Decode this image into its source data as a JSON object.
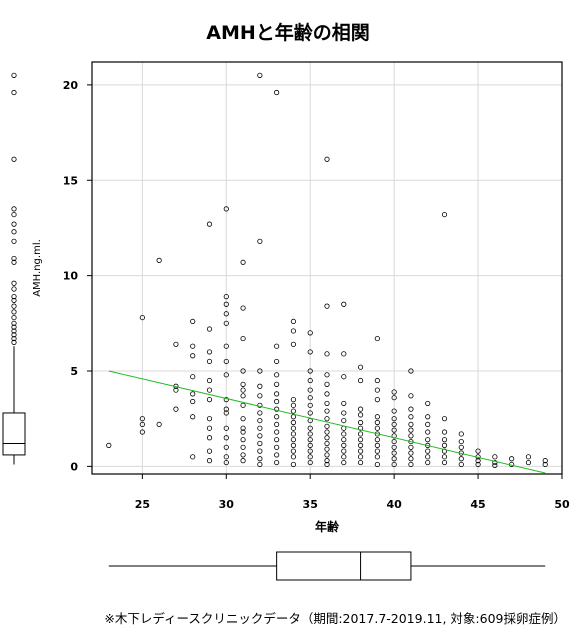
{
  "chart_data": {
    "type": "scatter",
    "title": "AMHと年齢の相関",
    "xlabel": "年齢",
    "ylabel": "AMH.ng.ml.",
    "xlim": [
      22,
      50
    ],
    "ylim": [
      -0.4,
      21.2
    ],
    "x_ticks": [
      25,
      30,
      35,
      40,
      45,
      50
    ],
    "y_ticks": [
      0,
      5,
      10,
      15,
      20
    ],
    "grid": true,
    "trend_line": {
      "x": [
        23,
        49
      ],
      "y": [
        5.0,
        -0.35
      ]
    },
    "points": [
      [
        23,
        1.1
      ],
      [
        25,
        7.8
      ],
      [
        25,
        2.5
      ],
      [
        25,
        2.2
      ],
      [
        25,
        1.8
      ],
      [
        26,
        10.8
      ],
      [
        26,
        2.2
      ],
      [
        27,
        6.4
      ],
      [
        27,
        4.2
      ],
      [
        27,
        4.0
      ],
      [
        27,
        3.0
      ],
      [
        28,
        7.6
      ],
      [
        28,
        6.3
      ],
      [
        28,
        5.8
      ],
      [
        28,
        4.7
      ],
      [
        28,
        3.8
      ],
      [
        28,
        3.4
      ],
      [
        28,
        2.6
      ],
      [
        28,
        0.5
      ],
      [
        29,
        12.7
      ],
      [
        29,
        7.2
      ],
      [
        29,
        6.0
      ],
      [
        29,
        5.5
      ],
      [
        29,
        4.5
      ],
      [
        29,
        4.0
      ],
      [
        29,
        3.5
      ],
      [
        29,
        2.5
      ],
      [
        29,
        2.0
      ],
      [
        29,
        1.5
      ],
      [
        29,
        0.8
      ],
      [
        29,
        0.3
      ],
      [
        30,
        13.5
      ],
      [
        30,
        8.9
      ],
      [
        30,
        8.5
      ],
      [
        30,
        8.0
      ],
      [
        30,
        7.5
      ],
      [
        30,
        6.3
      ],
      [
        30,
        5.5
      ],
      [
        30,
        4.8
      ],
      [
        30,
        3.5
      ],
      [
        30,
        3.0
      ],
      [
        30,
        2.8
      ],
      [
        30,
        2.0
      ],
      [
        30,
        1.5
      ],
      [
        30,
        1.0
      ],
      [
        30,
        0.5
      ],
      [
        30,
        0.2
      ],
      [
        31,
        10.7
      ],
      [
        31,
        8.3
      ],
      [
        31,
        6.7
      ],
      [
        31,
        5.0
      ],
      [
        31,
        4.3
      ],
      [
        31,
        4.0
      ],
      [
        31,
        3.7
      ],
      [
        31,
        3.2
      ],
      [
        31,
        2.5
      ],
      [
        31,
        2.0
      ],
      [
        31,
        1.8
      ],
      [
        31,
        1.4
      ],
      [
        31,
        1.0
      ],
      [
        31,
        0.6
      ],
      [
        31,
        0.3
      ],
      [
        32,
        20.5
      ],
      [
        32,
        11.8
      ],
      [
        32,
        5.0
      ],
      [
        32,
        4.2
      ],
      [
        32,
        3.7
      ],
      [
        32,
        3.2
      ],
      [
        32,
        2.8
      ],
      [
        32,
        2.4
      ],
      [
        32,
        2.0
      ],
      [
        32,
        1.6
      ],
      [
        32,
        1.2
      ],
      [
        32,
        0.8
      ],
      [
        32,
        0.4
      ],
      [
        32,
        0.1
      ],
      [
        33,
        19.6
      ],
      [
        33,
        6.3
      ],
      [
        33,
        5.5
      ],
      [
        33,
        4.8
      ],
      [
        33,
        4.3
      ],
      [
        33,
        3.8
      ],
      [
        33,
        3.4
      ],
      [
        33,
        3.0
      ],
      [
        33,
        2.6
      ],
      [
        33,
        2.2
      ],
      [
        33,
        1.8
      ],
      [
        33,
        1.4
      ],
      [
        33,
        1.0
      ],
      [
        33,
        0.6
      ],
      [
        33,
        0.2
      ],
      [
        34,
        7.6
      ],
      [
        34,
        7.1
      ],
      [
        34,
        6.4
      ],
      [
        34,
        3.5
      ],
      [
        34,
        3.2
      ],
      [
        34,
        2.9
      ],
      [
        34,
        2.6
      ],
      [
        34,
        2.3
      ],
      [
        34,
        2.0
      ],
      [
        34,
        1.7
      ],
      [
        34,
        1.4
      ],
      [
        34,
        1.1
      ],
      [
        34,
        0.8
      ],
      [
        34,
        0.5
      ],
      [
        34,
        0.1
      ],
      [
        35,
        7.0
      ],
      [
        35,
        6.0
      ],
      [
        35,
        5.0
      ],
      [
        35,
        4.5
      ],
      [
        35,
        4.0
      ],
      [
        35,
        3.6
      ],
      [
        35,
        3.2
      ],
      [
        35,
        2.8
      ],
      [
        35,
        2.4
      ],
      [
        35,
        2.0
      ],
      [
        35,
        1.7
      ],
      [
        35,
        1.4
      ],
      [
        35,
        1.1
      ],
      [
        35,
        0.8
      ],
      [
        35,
        0.5
      ],
      [
        35,
        0.2
      ],
      [
        36,
        16.1
      ],
      [
        36,
        8.4
      ],
      [
        36,
        5.9
      ],
      [
        36,
        4.8
      ],
      [
        36,
        4.3
      ],
      [
        36,
        3.8
      ],
      [
        36,
        3.3
      ],
      [
        36,
        2.9
      ],
      [
        36,
        2.5
      ],
      [
        36,
        2.1
      ],
      [
        36,
        1.8
      ],
      [
        36,
        1.5
      ],
      [
        36,
        1.2
      ],
      [
        36,
        0.9
      ],
      [
        36,
        0.6
      ],
      [
        36,
        0.3
      ],
      [
        36,
        0.1
      ],
      [
        37,
        8.5
      ],
      [
        37,
        5.9
      ],
      [
        37,
        4.7
      ],
      [
        37,
        3.3
      ],
      [
        37,
        2.8
      ],
      [
        37,
        2.4
      ],
      [
        37,
        2.0
      ],
      [
        37,
        1.7
      ],
      [
        37,
        1.4
      ],
      [
        37,
        1.1
      ],
      [
        37,
        0.8
      ],
      [
        37,
        0.5
      ],
      [
        37,
        0.2
      ],
      [
        38,
        5.2
      ],
      [
        38,
        4.5
      ],
      [
        38,
        3.0
      ],
      [
        38,
        2.7
      ],
      [
        38,
        2.3
      ],
      [
        38,
        2.0
      ],
      [
        38,
        1.7
      ],
      [
        38,
        1.4
      ],
      [
        38,
        1.1
      ],
      [
        38,
        0.8
      ],
      [
        38,
        0.5
      ],
      [
        38,
        0.2
      ],
      [
        39,
        6.7
      ],
      [
        39,
        4.5
      ],
      [
        39,
        4.0
      ],
      [
        39,
        3.5
      ],
      [
        39,
        2.6
      ],
      [
        39,
        2.3
      ],
      [
        39,
        2.0
      ],
      [
        39,
        1.7
      ],
      [
        39,
        1.4
      ],
      [
        39,
        1.1
      ],
      [
        39,
        0.8
      ],
      [
        39,
        0.5
      ],
      [
        39,
        0.1
      ],
      [
        40,
        3.9
      ],
      [
        40,
        3.6
      ],
      [
        40,
        2.9
      ],
      [
        40,
        2.5
      ],
      [
        40,
        2.2
      ],
      [
        40,
        1.9
      ],
      [
        40,
        1.6
      ],
      [
        40,
        1.3
      ],
      [
        40,
        1.0
      ],
      [
        40,
        0.7
      ],
      [
        40,
        0.4
      ],
      [
        40,
        0.1
      ],
      [
        41,
        5.0
      ],
      [
        41,
        3.7
      ],
      [
        41,
        3.0
      ],
      [
        41,
        2.6
      ],
      [
        41,
        2.2
      ],
      [
        41,
        1.9
      ],
      [
        41,
        1.6
      ],
      [
        41,
        1.3
      ],
      [
        41,
        1.0
      ],
      [
        41,
        0.7
      ],
      [
        41,
        0.4
      ],
      [
        41,
        0.1
      ],
      [
        42,
        3.3
      ],
      [
        42,
        2.6
      ],
      [
        42,
        2.2
      ],
      [
        42,
        1.8
      ],
      [
        42,
        1.4
      ],
      [
        42,
        1.1
      ],
      [
        42,
        0.8
      ],
      [
        42,
        0.5
      ],
      [
        42,
        0.2
      ],
      [
        43,
        13.2
      ],
      [
        43,
        2.5
      ],
      [
        43,
        1.8
      ],
      [
        43,
        1.4
      ],
      [
        43,
        1.1
      ],
      [
        43,
        0.8
      ],
      [
        43,
        0.5
      ],
      [
        43,
        0.2
      ],
      [
        44,
        1.7
      ],
      [
        44,
        1.3
      ],
      [
        44,
        1.0
      ],
      [
        44,
        0.7
      ],
      [
        44,
        0.4
      ],
      [
        44,
        0.1
      ],
      [
        45,
        0.8
      ],
      [
        45,
        0.5
      ],
      [
        45,
        0.3
      ],
      [
        45,
        0.1
      ],
      [
        46,
        0.5
      ],
      [
        46,
        0.2
      ],
      [
        46,
        0.05
      ],
      [
        47,
        0.4
      ],
      [
        47,
        0.1
      ],
      [
        48,
        0.5
      ],
      [
        48,
        0.2
      ],
      [
        49,
        0.3
      ],
      [
        49,
        0.1
      ]
    ],
    "x_boxplot": {
      "min": 23,
      "q1": 33,
      "median": 38,
      "q3": 41,
      "max": 49
    },
    "y_boxplot": {
      "min": 0.1,
      "q1": 0.6,
      "median": 1.2,
      "q3": 2.8,
      "whisker_high": 6.3,
      "outliers": [
        6.5,
        6.7,
        6.9,
        7.1,
        7.3,
        7.5,
        7.8,
        8.1,
        8.4,
        8.7,
        8.9,
        9.3,
        9.6,
        10.7,
        10.9,
        11.8,
        12.3,
        12.7,
        13.2,
        13.5,
        16.1,
        19.6,
        20.5
      ]
    }
  },
  "footer": "※木下レディースクリニックデータ（期間:2017.7-2019.11, 対象:609採卵症例）"
}
